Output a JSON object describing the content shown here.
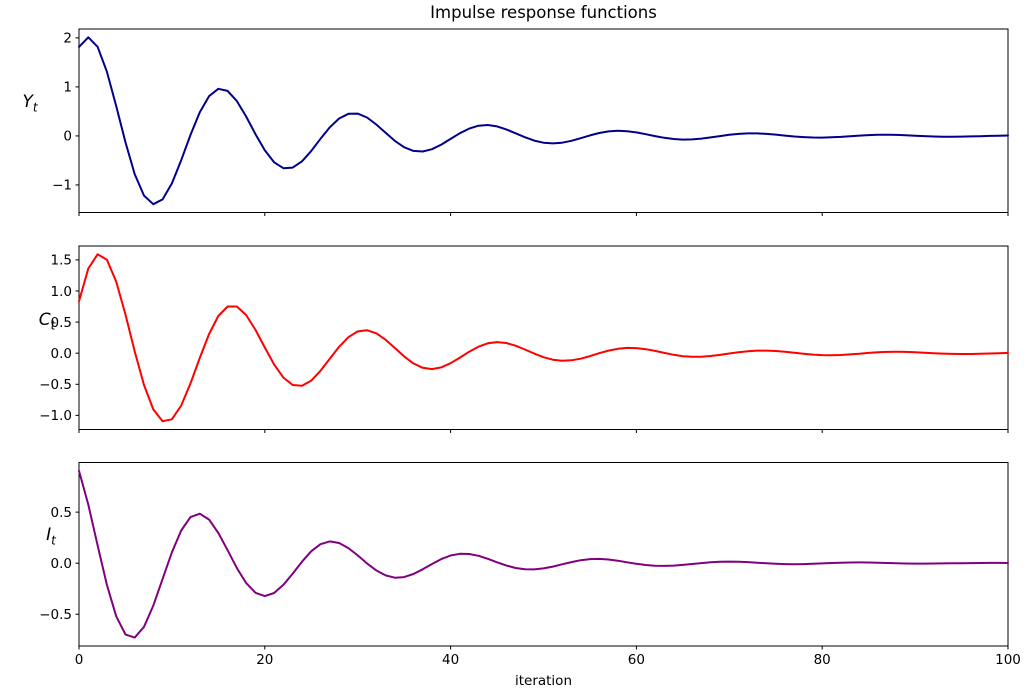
{
  "chart_data": {
    "type": "line",
    "title": "Impulse response functions",
    "xlabel": "iteration",
    "grid": false,
    "legend_position": "none",
    "background_color": "#ffffff",
    "axis_color": "#000000",
    "xlim": [
      0,
      100
    ],
    "xticks": [
      0,
      20,
      40,
      60,
      80,
      100
    ],
    "xtick_labels": [
      "0",
      "20",
      "40",
      "60",
      "80",
      "100"
    ],
    "x": [
      0,
      1,
      2,
      3,
      4,
      5,
      6,
      7,
      8,
      9,
      10,
      11,
      12,
      13,
      14,
      15,
      16,
      17,
      18,
      19,
      20,
      21,
      22,
      23,
      24,
      25,
      26,
      27,
      28,
      29,
      30,
      31,
      32,
      33,
      34,
      35,
      36,
      37,
      38,
      39,
      40,
      41,
      42,
      43,
      44,
      45,
      46,
      47,
      48,
      49,
      50,
      51,
      52,
      53,
      54,
      55,
      56,
      57,
      58,
      59,
      60,
      61,
      62,
      63,
      64,
      65,
      66,
      67,
      68,
      69,
      70,
      71,
      72,
      73,
      74,
      75,
      76,
      77,
      78,
      79,
      80,
      81,
      82,
      83,
      84,
      85,
      86,
      87,
      88,
      89,
      90,
      91,
      92,
      93,
      94,
      95,
      96,
      97,
      98,
      99,
      100
    ],
    "panels": [
      {
        "id": "Yt",
        "ylabel": "Y_t",
        "ylabel_base": "Y",
        "ylabel_sub": "t",
        "color": "#00008b",
        "ylim": [
          -1.562,
          2.181
        ],
        "yticks": [
          -1,
          0,
          1,
          2
        ],
        "ytick_labels": [
          "−1",
          "0",
          "1",
          "2"
        ],
        "values": [
          1.816,
          2.011,
          1.818,
          1.31,
          0.611,
          -0.132,
          -0.778,
          -1.218,
          -1.392,
          -1.294,
          -0.968,
          -0.496,
          0.021,
          0.484,
          0.813,
          0.961,
          0.918,
          0.711,
          0.394,
          0.036,
          -0.294,
          -0.538,
          -0.659,
          -0.647,
          -0.517,
          -0.305,
          -0.058,
          0.176,
          0.355,
          0.451,
          0.455,
          0.375,
          0.234,
          0.064,
          -0.101,
          -0.231,
          -0.306,
          -0.318,
          -0.27,
          -0.177,
          -0.061,
          0.055,
          0.15,
          0.208,
          0.222,
          0.194,
          0.133,
          0.054,
          -0.027,
          -0.095,
          -0.139,
          -0.153,
          -0.138,
          -0.099,
          -0.046,
          0.01,
          0.059,
          0.092,
          0.105,
          0.097,
          0.072,
          0.036,
          -0.003,
          -0.038,
          -0.063,
          -0.074,
          -0.07,
          -0.054,
          -0.03,
          -0.003,
          0.022,
          0.041,
          0.051,
          0.051,
          0.042,
          0.026,
          0.007,
          -0.011,
          -0.025,
          -0.033,
          -0.034,
          -0.029,
          -0.019,
          -0.006,
          0.007,
          0.017,
          0.023,
          0.024,
          0.021,
          0.014,
          0.005,
          -0.004,
          -0.011,
          -0.015,
          -0.016,
          -0.014,
          -0.01,
          -0.005,
          0.0,
          0.005,
          0.009
        ]
      },
      {
        "id": "Ct",
        "ylabel": "C_t",
        "ylabel_base": "C",
        "ylabel_sub": "t",
        "color": "#ff0000",
        "ylim": [
          -1.227,
          1.723
        ],
        "yticks": [
          -1.0,
          -0.5,
          0.0,
          0.5,
          1.0,
          1.5
        ],
        "ytick_labels": [
          "−1.0",
          "−0.5",
          "0.0",
          "0.5",
          "1.0",
          "1.5"
        ],
        "values": [
          0.832,
          1.361,
          1.589,
          1.503,
          1.15,
          0.62,
          0.028,
          -0.511,
          -0.904,
          -1.093,
          -1.063,
          -0.841,
          -0.486,
          -0.076,
          0.308,
          0.598,
          0.75,
          0.75,
          0.612,
          0.375,
          0.092,
          -0.18,
          -0.392,
          -0.511,
          -0.525,
          -0.441,
          -0.284,
          -0.09,
          0.102,
          0.257,
          0.35,
          0.37,
          0.32,
          0.216,
          0.083,
          -0.052,
          -0.164,
          -0.235,
          -0.256,
          -0.228,
          -0.161,
          -0.071,
          0.023,
          0.104,
          0.158,
          0.178,
          0.163,
          0.12,
          0.059,
          -0.007,
          -0.065,
          -0.105,
          -0.122,
          -0.115,
          -0.088,
          -0.047,
          -0.001,
          0.041,
          0.071,
          0.085,
          0.082,
          0.064,
          0.036,
          0.004,
          -0.026,
          -0.048,
          -0.059,
          -0.058,
          -0.046,
          -0.027,
          -0.005,
          0.016,
          0.032,
          0.041,
          0.042,
          0.035,
          0.022,
          0.006,
          -0.01,
          -0.023,
          -0.031,
          -0.033,
          -0.029,
          -0.02,
          -0.008,
          0.004,
          0.014,
          0.02,
          0.022,
          0.02,
          0.015,
          0.008,
          0.0,
          -0.007,
          -0.012,
          -0.014,
          -0.013,
          -0.01,
          -0.005,
          0.0,
          0.005
        ]
      },
      {
        "id": "It",
        "ylabel": "I_t",
        "ylabel_base": "I",
        "ylabel_sub": "t",
        "color": "#800080",
        "ylim": [
          -0.811,
          0.986
        ],
        "yticks": [
          -0.5,
          0.0,
          0.5
        ],
        "ytick_labels": [
          "−0.5",
          "0.0",
          "0.5"
        ],
        "values": [
          0.904,
          0.574,
          0.175,
          -0.213,
          -0.52,
          -0.698,
          -0.729,
          -0.623,
          -0.415,
          -0.154,
          0.107,
          0.32,
          0.451,
          0.485,
          0.427,
          0.297,
          0.127,
          -0.048,
          -0.195,
          -0.29,
          -0.322,
          -0.292,
          -0.212,
          -0.102,
          0.015,
          0.117,
          0.186,
          0.213,
          0.198,
          0.148,
          0.076,
          -0.002,
          -0.071,
          -0.12,
          -0.142,
          -0.136,
          -0.106,
          -0.06,
          -0.008,
          0.04,
          0.075,
          0.092,
          0.09,
          0.072,
          0.043,
          0.009,
          -0.023,
          -0.047,
          -0.06,
          -0.061,
          -0.051,
          -0.033,
          -0.011,
          0.011,
          0.029,
          0.04,
          0.042,
          0.036,
          0.024,
          0.009,
          -0.006,
          -0.018,
          -0.025,
          -0.027,
          -0.024,
          -0.017,
          -0.008,
          0.001,
          0.009,
          0.014,
          0.016,
          0.015,
          0.011,
          0.005,
          -0.001,
          -0.006,
          -0.009,
          -0.01,
          -0.009,
          -0.006,
          -0.002,
          0.002,
          0.005,
          0.007,
          0.008,
          0.007,
          0.005,
          0.002,
          -0.001,
          -0.003,
          -0.004,
          -0.004,
          -0.003,
          -0.002,
          -0.001,
          0.0,
          0.001,
          0.002,
          0.003,
          0.003,
          0.002
        ]
      }
    ]
  }
}
